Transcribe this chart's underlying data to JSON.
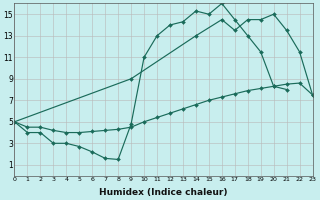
{
  "xlabel": "Humidex (Indice chaleur)",
  "xlim": [
    0,
    23
  ],
  "ylim": [
    0,
    16
  ],
  "xtick_vals": [
    0,
    1,
    2,
    3,
    4,
    5,
    6,
    7,
    8,
    9,
    10,
    11,
    12,
    13,
    14,
    15,
    16,
    17,
    18,
    19,
    20,
    21,
    22,
    23
  ],
  "ytick_vals": [
    1,
    3,
    5,
    7,
    9,
    11,
    13,
    15
  ],
  "bg_color": "#c8eeee",
  "grid_color": "#b8b8b8",
  "line_color": "#1a6b5a",
  "line1_x": [
    0,
    1,
    2,
    3,
    4,
    5,
    6,
    7,
    8,
    9,
    10,
    11,
    12,
    13,
    14,
    15,
    16,
    17,
    18,
    19,
    20,
    21
  ],
  "line1_y": [
    5.0,
    4.0,
    4.0,
    3.0,
    3.0,
    2.7,
    2.2,
    1.6,
    1.5,
    4.8,
    11.0,
    13.0,
    14.0,
    14.3,
    15.3,
    15.0,
    16.0,
    14.5,
    13.0,
    11.5,
    8.3,
    8.0
  ],
  "line2_x": [
    0,
    9,
    14,
    16,
    17,
    18,
    19,
    20,
    21,
    22,
    23
  ],
  "line2_y": [
    5.0,
    9.0,
    13.0,
    14.5,
    13.5,
    14.5,
    14.5,
    15.0,
    13.5,
    11.5,
    7.5
  ],
  "line3_x": [
    0,
    1,
    2,
    3,
    4,
    5,
    6,
    7,
    8,
    9,
    10,
    11,
    12,
    13,
    14,
    15,
    16,
    17,
    18,
    19,
    20,
    21,
    22,
    23
  ],
  "line3_y": [
    5.0,
    4.5,
    4.5,
    4.2,
    4.0,
    4.0,
    4.1,
    4.2,
    4.3,
    4.5,
    5.0,
    5.4,
    5.8,
    6.2,
    6.6,
    7.0,
    7.3,
    7.6,
    7.9,
    8.1,
    8.3,
    8.5,
    8.6,
    7.5
  ]
}
